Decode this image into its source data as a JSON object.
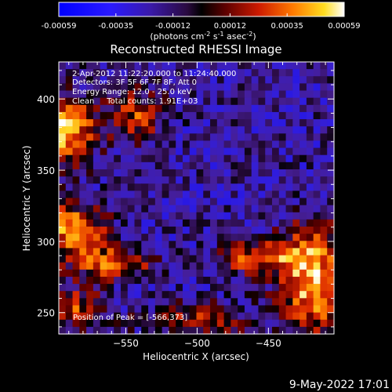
{
  "footer_date": "9-May-2022 17:01",
  "colorbar": {
    "ticks": [
      "-0.00059",
      "-0.00035",
      "-0.00012",
      "0.00012",
      "0.00035",
      "0.00059"
    ],
    "units_main": "(photons cm",
    "units_exp1": "-2",
    "units_mid": " s",
    "units_exp2": "-1",
    "units_end": " asec",
    "units_exp3": "-2",
    "units_close": ")"
  },
  "chart_data": {
    "type": "heatmap",
    "title": "Reconstructed RHESSI Image",
    "xlabel": "Heliocentric X (arcsec)",
    "ylabel": "Heliocentric Y (arcsec)",
    "xlim": [
      -597,
      -404
    ],
    "ylim": [
      235,
      426
    ],
    "xticks": [
      -550,
      -500,
      -450
    ],
    "yticks": [
      250,
      300,
      350,
      400
    ],
    "zlim": [
      -0.00059,
      0.00059
    ],
    "annotations": [
      "2-Apr-2012 11:22:20.000 to 11:24:40.000",
      "Detectors: 3F 5F 6F 7F 8F, Att 0",
      "Energy Range: 12.0 - 25.0 keV",
      "Clean     Total counts: 1.91E+03"
    ],
    "peak_label": "Position of Peak = [-566,373]",
    "peak": [
      -566,
      373
    ]
  }
}
